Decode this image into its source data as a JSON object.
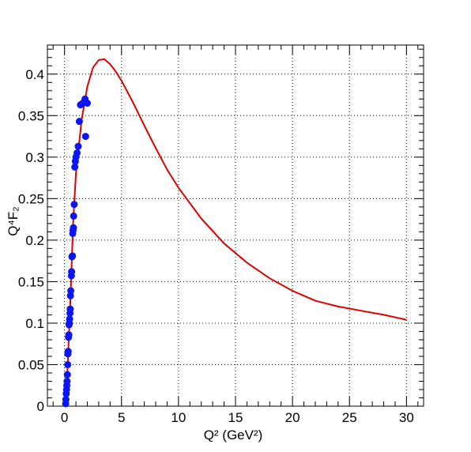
{
  "chart_data": {
    "type": "scatter",
    "title": "",
    "xlabel": "Q² (GeV²)",
    "ylabel": "Q⁴F₂",
    "xlim": [
      -1.5,
      31.5
    ],
    "ylim": [
      0,
      0.435
    ],
    "grid": true,
    "x_ticks": [
      "0",
      "5",
      "10",
      "15",
      "20",
      "25",
      "30"
    ],
    "y_ticks": [
      "0",
      "0.05",
      "0.1",
      "0.15",
      "0.2",
      "0.25",
      "0.3",
      "0.35",
      "0.4"
    ],
    "colors": {
      "curve": "#e00000",
      "points": "#0b16f2",
      "grid": "#000000"
    },
    "series": [
      {
        "type": "line",
        "x": [
          0,
          0.25,
          0.5,
          0.75,
          1,
          1.5,
          2,
          2.5,
          3,
          3.5,
          4,
          4.5,
          5,
          6,
          7,
          8,
          9,
          10,
          12,
          14,
          16,
          18,
          20,
          22,
          24,
          26,
          28,
          30
        ],
        "y": [
          0,
          0.04,
          0.12,
          0.22,
          0.28,
          0.345,
          0.385,
          0.408,
          0.417,
          0.418,
          0.412,
          0.403,
          0.392,
          0.366,
          0.338,
          0.311,
          0.285,
          0.263,
          0.226,
          0.196,
          0.173,
          0.154,
          0.139,
          0.127,
          0.12,
          0.115,
          0.11,
          0.104
        ]
      },
      {
        "type": "scatter",
        "x": [
          0.1,
          0.12,
          0.15,
          0.18,
          0.2,
          0.22,
          0.25,
          0.28,
          0.3,
          0.32,
          0.35,
          0.38,
          0.4,
          0.42,
          0.45,
          0.48,
          0.5,
          0.52,
          0.55,
          0.6,
          0.62,
          0.65,
          0.7,
          0.72,
          0.75,
          0.78,
          0.8,
          0.85,
          0.9,
          0.95,
          1.0,
          1.1,
          1.2,
          1.3,
          1.4,
          1.6,
          1.8,
          1.85,
          2.0
        ],
        "y": [
          0.003,
          0.008,
          0.015,
          0.02,
          0.025,
          0.03,
          0.038,
          0.05,
          0.063,
          0.066,
          0.083,
          0.086,
          0.098,
          0.1,
          0.105,
          0.112,
          0.117,
          0.133,
          0.139,
          0.157,
          0.162,
          0.18,
          0.181,
          0.208,
          0.212,
          0.215,
          0.229,
          0.243,
          0.288,
          0.295,
          0.3,
          0.305,
          0.313,
          0.343,
          0.363,
          0.365,
          0.37,
          0.325,
          0.365
        ]
      }
    ]
  }
}
